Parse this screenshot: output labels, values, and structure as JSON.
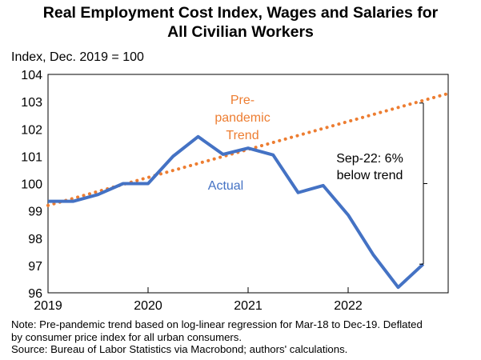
{
  "chart_data": {
    "type": "line",
    "title_line1": "Real Employment  Cost Index, Wages and Salaries for",
    "title_line2": "All Civilian Workers",
    "ylabel": "Index, Dec. 2019 = 100",
    "ylim": [
      96,
      104
    ],
    "yticks": [
      "104",
      "103",
      "102",
      "101",
      "100",
      "99",
      "98",
      "97",
      "96"
    ],
    "xlim": [
      2019.0,
      2023.0
    ],
    "xticks": [
      {
        "label": "2019",
        "x": 2019.0
      },
      {
        "label": "2020",
        "x": 2020.0
      },
      {
        "label": "2021",
        "x": 2021.0
      },
      {
        "label": "2022",
        "x": 2022.0
      }
    ],
    "grid": false,
    "colors": {
      "actual": "#4472C4",
      "trend": "#ED7D31"
    },
    "series": [
      {
        "name": "Actual",
        "x": [
          2019.0,
          2019.25,
          2019.5,
          2019.75,
          2020.0,
          2020.25,
          2020.5,
          2020.75,
          2021.0,
          2021.25,
          2021.5,
          2021.75,
          2022.0,
          2022.25,
          2022.5,
          2022.75
        ],
        "values": [
          99.35,
          99.35,
          99.6,
          100.0,
          100.0,
          101.0,
          101.72,
          101.07,
          101.3,
          101.05,
          99.67,
          99.93,
          98.85,
          97.4,
          96.2,
          97.05
        ]
      },
      {
        "name": "Pre-pandemic Trend",
        "x": [
          2019.0,
          2023.0
        ],
        "values": [
          99.2,
          103.3
        ]
      }
    ],
    "annotations": {
      "trend_label": [
        "Pre-",
        "pandemic",
        "Trend"
      ],
      "actual_label": "Actual",
      "gap_label": [
        "Sep-22: 6%",
        "below trend"
      ]
    }
  },
  "notes": {
    "line1": "Note: Pre-pandemic trend based on log-linear regression for Mar-18 to Dec-19. Deflated",
    "line2": "by consumer price index for all urban consumers.",
    "line3": "Source: Bureau of Labor Statistics via Macrobond; authors' calculations."
  }
}
